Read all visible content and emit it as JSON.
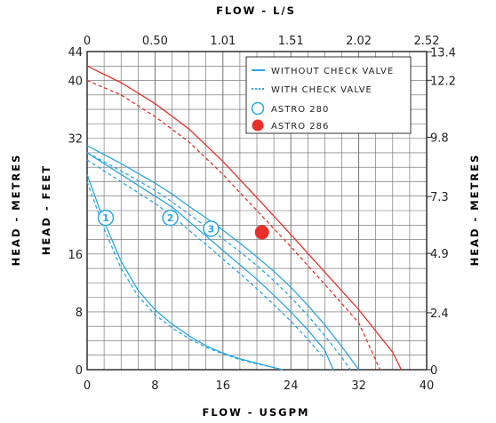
{
  "chart_data": {
    "type": "line",
    "title": "",
    "accent_color": "#29a8e0",
    "grid": true,
    "x_top_label": "FLOW - L/S",
    "x_bottom_label": "FLOW - USGPM",
    "y_left_outer_label": "HEAD - METRES",
    "y_left_label": "HEAD - FEET",
    "y_right_label": "HEAD - METRES",
    "x_ticks_bottom": [
      "0",
      "8",
      "16",
      "24",
      "32",
      "40"
    ],
    "x_ticks_top": [
      "0",
      "0.50",
      "1.01",
      "1.51",
      "2.02",
      "2.52"
    ],
    "y_ticks_left": [
      "0",
      "8",
      "16",
      "32",
      "40",
      "44"
    ],
    "y_ticks_right": [
      "0",
      "2.4",
      "4.9",
      "7.3",
      "9.8",
      "12.2",
      "13.4"
    ],
    "xlim": [
      0,
      40
    ],
    "ylim": [
      0,
      44
    ],
    "legend": {
      "position": "top-right",
      "items": [
        {
          "label": "WITHOUT CHECK VALVE",
          "style": "solid-line"
        },
        {
          "label": "WITH CHECK VALVE",
          "style": "dotted-line"
        },
        {
          "label": "ASTRO 280",
          "style": "open-circle",
          "color": "#29a8e0"
        },
        {
          "label": "ASTRO 286",
          "style": "filled-circle",
          "color": "#e8302a"
        }
      ]
    },
    "series": [
      {
        "label": "1",
        "color": "#29a8e0",
        "style": "solid",
        "x": [
          0,
          2,
          4,
          6,
          8,
          10,
          12,
          14,
          16,
          18,
          20,
          22,
          23
        ],
        "y": [
          27,
          20.5,
          15,
          11,
          8.3,
          6.3,
          4.7,
          3.3,
          2.3,
          1.5,
          0.9,
          0.3,
          0
        ]
      },
      {
        "label": "1",
        "color": "#29a8e0",
        "style": "dashed",
        "x": [
          0,
          2,
          4,
          6,
          8,
          10,
          12,
          14,
          16,
          18,
          20,
          22,
          23
        ],
        "y": [
          26,
          19.5,
          14,
          10.2,
          7.6,
          5.8,
          4.3,
          3.1,
          2.2,
          1.4,
          0.8,
          0.3,
          0
        ]
      },
      {
        "label": "2",
        "color": "#29a8e0",
        "style": "solid",
        "x": [
          0,
          4,
          8,
          10,
          12,
          14,
          16,
          18,
          20,
          22,
          24,
          26,
          28,
          29
        ],
        "y": [
          30,
          27,
          24,
          22.5,
          20.5,
          18.5,
          16.5,
          14.5,
          12.5,
          10.3,
          8,
          5.5,
          2.7,
          0
        ]
      },
      {
        "label": "2",
        "color": "#29a8e0",
        "style": "dashed",
        "x": [
          0,
          4,
          8,
          10,
          12,
          14,
          16,
          18,
          20,
          22,
          24,
          26,
          28
        ],
        "y": [
          29,
          26,
          23,
          21.3,
          19.3,
          17.3,
          15.3,
          13.3,
          11.2,
          9,
          6.7,
          4.2,
          1.5
        ]
      },
      {
        "label": "3",
        "color": "#29a8e0",
        "style": "solid",
        "x": [
          0,
          4,
          8,
          10,
          12,
          14,
          16,
          18,
          20,
          22,
          24,
          26,
          28,
          30,
          32
        ],
        "y": [
          31,
          28.5,
          25.8,
          24.3,
          22.6,
          21,
          19.3,
          17.5,
          15.6,
          13.6,
          11.4,
          8.9,
          6.2,
          3.2,
          0
        ]
      },
      {
        "label": "3",
        "color": "#29a8e0",
        "style": "dashed",
        "x": [
          0,
          4,
          8,
          10,
          12,
          14,
          16,
          18,
          20,
          22,
          24,
          26,
          28,
          30,
          31
        ],
        "y": [
          30,
          27.5,
          24.8,
          23.2,
          21.5,
          19.8,
          18.1,
          16.3,
          14.4,
          12.3,
          10,
          7.5,
          4.7,
          1.7,
          0
        ]
      },
      {
        "label": "ASTRO 286",
        "color": "#e8302a",
        "style": "solid",
        "x": [
          0,
          4,
          8,
          12,
          16,
          20,
          24,
          28,
          32,
          36,
          37
        ],
        "y": [
          42,
          39.7,
          36.8,
          33.3,
          28.8,
          23.8,
          18.7,
          13.5,
          8.3,
          2.4,
          0
        ]
      },
      {
        "label": "ASTRO 286",
        "color": "#e8302a",
        "style": "dashed",
        "x": [
          0,
          4,
          8,
          12,
          16,
          20,
          24,
          28,
          32,
          34.5
        ],
        "y": [
          40,
          38,
          35,
          31.5,
          27,
          22,
          17,
          11.8,
          6.5,
          0
        ]
      }
    ],
    "curve_markers": [
      {
        "label": "1",
        "x": 2.2,
        "y": 21,
        "color": "#29a8e0"
      },
      {
        "label": "2",
        "x": 9.8,
        "y": 21,
        "color": "#29a8e0"
      },
      {
        "label": "3",
        "x": 14.6,
        "y": 19.5,
        "color": "#29a8e0"
      }
    ],
    "point_markers": [
      {
        "label": "ASTRO 286",
        "x": 20.6,
        "y": 19,
        "color": "#e8302a"
      }
    ]
  }
}
